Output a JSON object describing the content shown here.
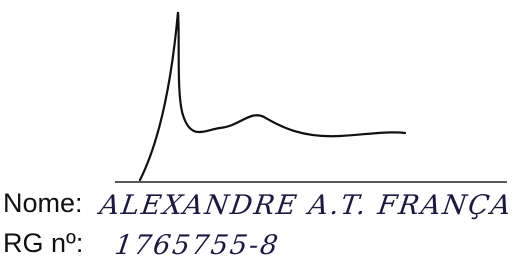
{
  "fields": [
    {
      "label": "Nome:",
      "value": "ALEXANDRE A.T. FRANÇA"
    },
    {
      "label": "RG nº:",
      "value": "1765755-8"
    }
  ]
}
